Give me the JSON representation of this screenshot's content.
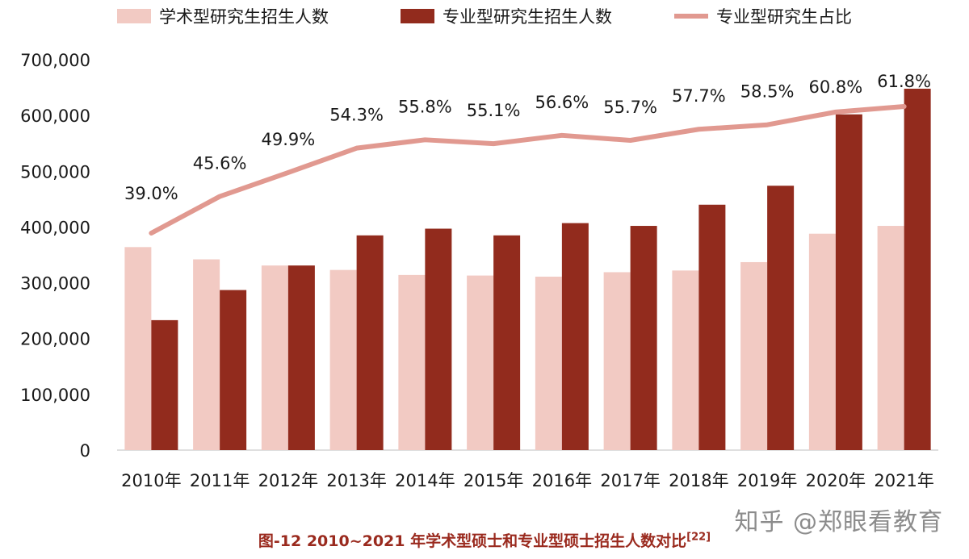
{
  "chart_data": {
    "type": "bar+line",
    "categories": [
      "2010年",
      "2011年",
      "2012年",
      "2013年",
      "2014年",
      "2015年",
      "2016年",
      "2017年",
      "2018年",
      "2019年",
      "2020年",
      "2021年"
    ],
    "series": [
      {
        "name": "学术型研究生招生人数",
        "type": "bar",
        "color": "#f2cac3",
        "values": [
          364000,
          342000,
          331000,
          323000,
          314000,
          313000,
          311000,
          319000,
          322000,
          337000,
          388000,
          402000
        ]
      },
      {
        "name": "专业型研究生招生人数",
        "type": "bar",
        "color": "#922b1d",
        "values": [
          233000,
          287000,
          331000,
          385000,
          397000,
          385000,
          407000,
          402000,
          440000,
          474000,
          602000,
          648000
        ]
      },
      {
        "name": "专业型研究生占比",
        "type": "line",
        "color": "#e19990",
        "values": [
          39.0,
          45.6,
          49.9,
          54.3,
          55.8,
          55.1,
          56.6,
          55.7,
          57.7,
          58.5,
          60.8,
          61.8
        ],
        "labels": [
          "39.0%",
          "45.6%",
          "49.9%",
          "54.3%",
          "55.8%",
          "55.1%",
          "56.6%",
          "55.7%",
          "57.7%",
          "58.5%",
          "60.8%",
          "61.8%"
        ]
      }
    ],
    "ylim": [
      0,
      700000
    ],
    "yticks": [
      0,
      100000,
      200000,
      300000,
      400000,
      500000,
      600000,
      700000
    ],
    "ytick_labels": [
      "0",
      "100,000",
      "200,000",
      "300,000",
      "400,000",
      "500,000",
      "600,000",
      "700,000"
    ],
    "legend_position": "top",
    "grid": false
  },
  "caption": {
    "text": "图-12 2010~2021 年学术型硕士和专业型硕士招生人数对比",
    "ref": "[22]"
  },
  "watermark": "知乎 @郑眼看教育"
}
